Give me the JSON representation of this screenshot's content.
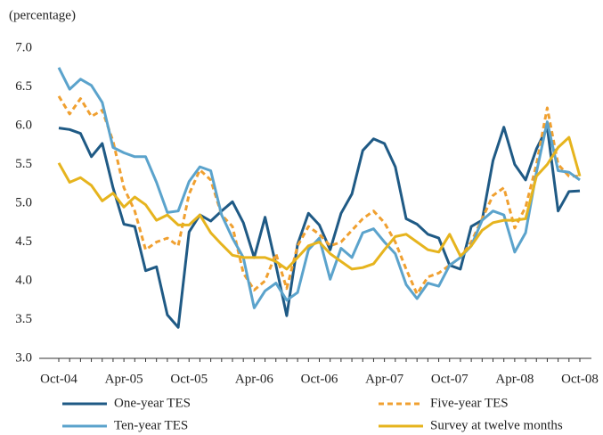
{
  "chart_data": {
    "type": "line",
    "y_label": "(percentage)",
    "categories": [
      "Oct-04",
      null,
      null,
      null,
      null,
      null,
      "Apr-05",
      null,
      null,
      null,
      null,
      null,
      "Oct-05",
      null,
      null,
      null,
      null,
      null,
      "Apr-06",
      null,
      null,
      null,
      null,
      null,
      "Oct-06",
      null,
      null,
      null,
      null,
      null,
      "Apr-07",
      null,
      null,
      null,
      null,
      null,
      "Oct-07",
      null,
      null,
      null,
      null,
      null,
      "Apr-08",
      null,
      null,
      null,
      null,
      null,
      "Oct-08"
    ],
    "ylim": [
      3.0,
      7.0
    ],
    "yticks": [
      {
        "value": 3.0,
        "label": "3.0"
      },
      {
        "value": 3.5,
        "label": "3.5"
      },
      {
        "value": 4.0,
        "label": "4.0"
      },
      {
        "value": 4.5,
        "label": "4.5"
      },
      {
        "value": 5.0,
        "label": "5.0"
      },
      {
        "value": 5.5,
        "label": "5.5"
      },
      {
        "value": 6.0,
        "label": "6.0"
      },
      {
        "value": 6.5,
        "label": "6.5"
      },
      {
        "value": 7.0,
        "label": "7.0"
      }
    ],
    "series": [
      {
        "name": "One-year TES",
        "color": "#1f5a85",
        "linestyle": "solid",
        "values": [
          5.97,
          5.95,
          5.9,
          5.6,
          5.77,
          5.2,
          4.73,
          4.7,
          4.13,
          4.18,
          3.56,
          3.4,
          4.63,
          4.85,
          4.77,
          4.9,
          5.02,
          4.75,
          4.3,
          4.82,
          4.2,
          3.55,
          4.47,
          4.87,
          4.72,
          4.4,
          4.87,
          5.12,
          5.68,
          5.83,
          5.77,
          5.47,
          4.8,
          4.73,
          4.6,
          4.55,
          4.2,
          4.15,
          4.7,
          4.78,
          5.55,
          5.98,
          5.5,
          5.3,
          5.7,
          5.98,
          4.9,
          5.15,
          5.16
        ]
      },
      {
        "name": "Five-year TES",
        "color": "#f0a030",
        "linestyle": "dashed",
        "values": [
          6.38,
          6.15,
          6.35,
          6.12,
          6.2,
          5.8,
          5.2,
          4.9,
          4.4,
          4.5,
          4.55,
          4.45,
          5.12,
          5.43,
          5.3,
          4.85,
          4.7,
          4.1,
          3.88,
          4.0,
          4.35,
          3.9,
          4.45,
          4.7,
          4.6,
          4.45,
          4.5,
          4.65,
          4.8,
          4.9,
          4.75,
          4.5,
          4.15,
          3.83,
          4.05,
          4.1,
          4.2,
          4.3,
          4.5,
          4.8,
          5.1,
          5.2,
          4.68,
          4.95,
          5.5,
          6.23,
          5.5,
          5.35,
          5.35
        ]
      },
      {
        "name": "Ten-year TES",
        "color": "#5ba3cc",
        "linestyle": "solid",
        "values": [
          6.75,
          6.47,
          6.6,
          6.52,
          6.3,
          5.72,
          5.65,
          5.6,
          5.6,
          5.27,
          4.88,
          4.9,
          5.28,
          5.47,
          5.42,
          4.85,
          4.55,
          4.3,
          3.65,
          3.87,
          3.97,
          3.75,
          3.85,
          4.4,
          4.55,
          4.02,
          4.42,
          4.3,
          4.62,
          4.67,
          4.5,
          4.35,
          3.95,
          3.77,
          3.97,
          3.93,
          4.2,
          4.3,
          4.45,
          4.78,
          4.9,
          4.85,
          4.37,
          4.62,
          5.4,
          6.05,
          5.42,
          5.4,
          5.3
        ]
      },
      {
        "name": "Survey at twelve months",
        "color": "#e6b41e",
        "linestyle": "solid",
        "values": [
          5.52,
          5.27,
          5.33,
          5.23,
          5.03,
          5.13,
          4.95,
          5.08,
          4.98,
          4.78,
          4.85,
          4.72,
          4.72,
          4.85,
          4.62,
          4.47,
          4.33,
          4.3,
          4.3,
          4.3,
          4.25,
          4.15,
          4.3,
          4.45,
          4.5,
          4.35,
          4.25,
          4.15,
          4.17,
          4.22,
          4.4,
          4.57,
          4.6,
          4.5,
          4.4,
          4.37,
          4.6,
          4.32,
          4.45,
          4.65,
          4.75,
          4.78,
          4.78,
          4.8,
          5.35,
          5.5,
          5.72,
          5.85,
          5.35
        ]
      }
    ]
  }
}
